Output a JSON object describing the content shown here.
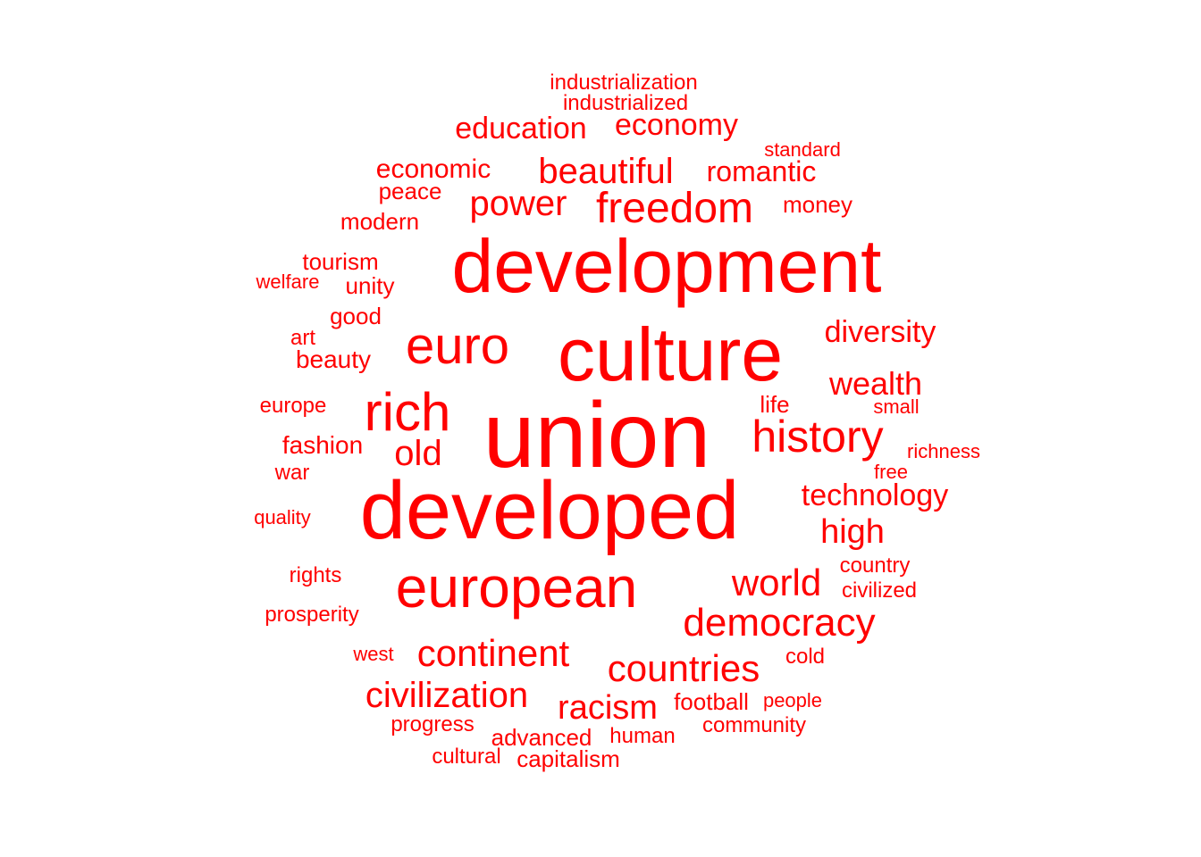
{
  "color": "#ff0000",
  "words": [
    {
      "text": "union"
    },
    {
      "text": "developed"
    },
    {
      "text": "development"
    },
    {
      "text": "culture"
    },
    {
      "text": "european"
    },
    {
      "text": "rich"
    },
    {
      "text": "euro"
    },
    {
      "text": "history"
    },
    {
      "text": "freedom"
    },
    {
      "text": "democracy"
    },
    {
      "text": "continent"
    },
    {
      "text": "countries"
    },
    {
      "text": "world"
    },
    {
      "text": "civilization"
    },
    {
      "text": "beautiful"
    },
    {
      "text": "power"
    },
    {
      "text": "old"
    },
    {
      "text": "high"
    },
    {
      "text": "wealth"
    },
    {
      "text": "technology"
    },
    {
      "text": "racism"
    },
    {
      "text": "diversity"
    },
    {
      "text": "economy"
    },
    {
      "text": "education"
    },
    {
      "text": "romantic"
    },
    {
      "text": "economic"
    },
    {
      "text": "fashion"
    },
    {
      "text": "tourism"
    },
    {
      "text": "beauty"
    },
    {
      "text": "football"
    },
    {
      "text": "advanced"
    },
    {
      "text": "capitalism"
    },
    {
      "text": "modern"
    },
    {
      "text": "money"
    },
    {
      "text": "industrialized"
    },
    {
      "text": "industrialization"
    },
    {
      "text": "peace"
    },
    {
      "text": "unity"
    },
    {
      "text": "good"
    },
    {
      "text": "art"
    },
    {
      "text": "life"
    },
    {
      "text": "human"
    },
    {
      "text": "standard"
    },
    {
      "text": "welfare"
    },
    {
      "text": "europe"
    },
    {
      "text": "war"
    },
    {
      "text": "quality"
    },
    {
      "text": "rights"
    },
    {
      "text": "prosperity"
    },
    {
      "text": "west"
    },
    {
      "text": "progress"
    },
    {
      "text": "cultural"
    },
    {
      "text": "community"
    },
    {
      "text": "people"
    },
    {
      "text": "cold"
    },
    {
      "text": "country"
    },
    {
      "text": "civilized"
    },
    {
      "text": "richness"
    },
    {
      "text": "free"
    },
    {
      "text": "small"
    }
  ]
}
